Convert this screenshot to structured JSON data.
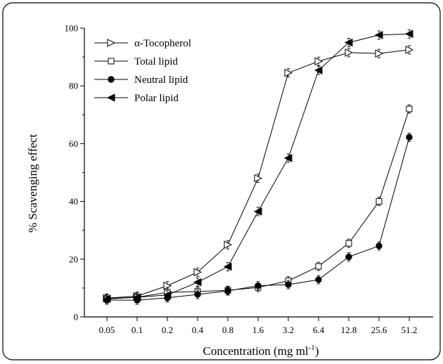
{
  "chart_data": {
    "type": "line",
    "title": "",
    "xlabel": "Concentration (mg ml",
    "xlabel_sup": "-1",
    "xlabel_close": ")",
    "ylabel": "% Scavenging effect",
    "ylim": [
      0,
      100
    ],
    "yticks": [
      "0",
      "20",
      "40",
      "60",
      "80",
      "100"
    ],
    "categories": [
      "0.05",
      "0.1",
      "0.2",
      "0.4",
      "0.8",
      "1.6",
      "3.2",
      "6.4",
      "12.8",
      "25.6",
      "51.2"
    ],
    "legend_position": "top-left",
    "grid": false,
    "series": [
      {
        "name": "α-Tocopherol",
        "marker": "open-triangle-right",
        "values": [
          6.5,
          7.2,
          10.8,
          15.5,
          25,
          48,
          84.5,
          88.5,
          91.5,
          91.2,
          92.5
        ]
      },
      {
        "name": "Total lipid",
        "marker": "open-square",
        "values": [
          6.2,
          6.8,
          8.5,
          8.8,
          9.2,
          10.2,
          12.5,
          17.5,
          25.5,
          40,
          72
        ]
      },
      {
        "name": "Neutral lipid",
        "marker": "filled-circle",
        "values": [
          5.8,
          5.8,
          6.6,
          7.8,
          9,
          10.8,
          11.2,
          12.9,
          20.8,
          24.6,
          62.2
        ]
      },
      {
        "name": "Polar lipid",
        "marker": "filled-triangle-left",
        "values": [
          6.3,
          6.8,
          7.6,
          12,
          17.4,
          36.5,
          55,
          85.4,
          95,
          97.6,
          98
        ]
      }
    ]
  }
}
